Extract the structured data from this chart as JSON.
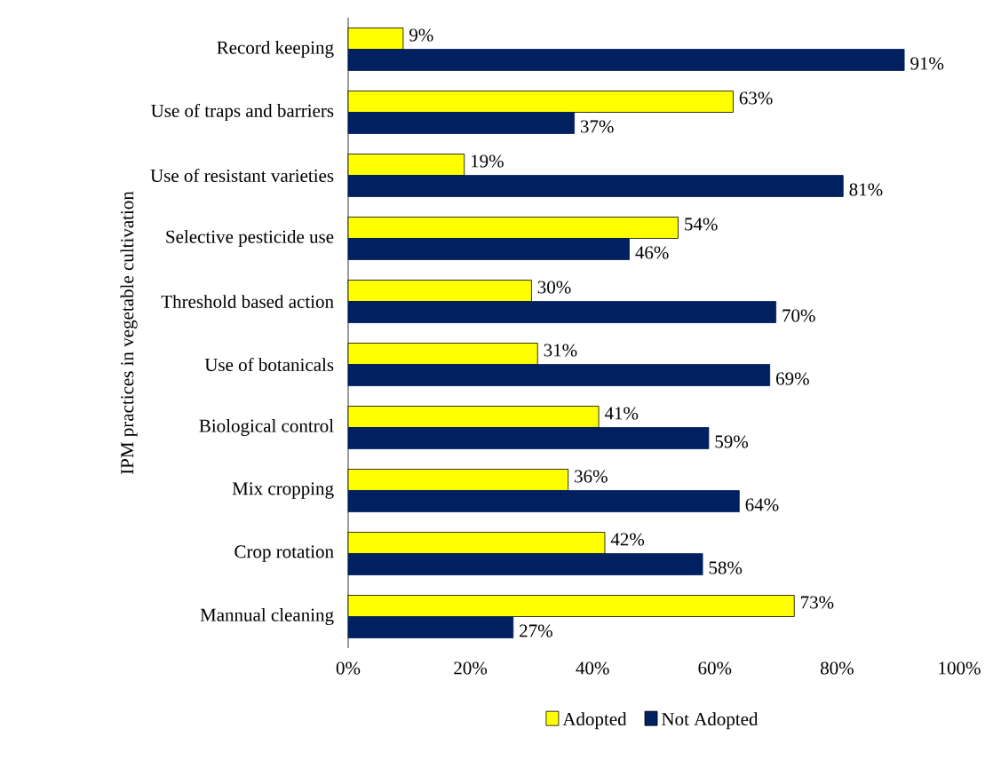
{
  "chart_data": {
    "type": "bar",
    "orientation": "horizontal",
    "ylabel": "IPM practices in vegetable cultivation",
    "categories": [
      "Record keeping",
      "Use of traps and barriers",
      "Use of resistant varieties",
      "Selective pesticide use",
      "Threshold based action",
      "Use of botanicals",
      "Biological control",
      "Mix cropping",
      "Crop rotation",
      "Mannual cleaning"
    ],
    "series": [
      {
        "name": "Adopted",
        "color": "#ffff00",
        "values": [
          9,
          63,
          19,
          54,
          30,
          31,
          41,
          36,
          42,
          73
        ],
        "value_labels": [
          "9%",
          "63%",
          "19%",
          "54%",
          "30%",
          "31%",
          "41%",
          "36%",
          "42%",
          "73%"
        ]
      },
      {
        "name": "Not Adopted",
        "color": "#002060",
        "values": [
          91,
          37,
          81,
          46,
          70,
          69,
          59,
          64,
          58,
          27
        ],
        "value_labels": [
          "91%",
          "37%",
          "81%",
          "46%",
          "70%",
          "69%",
          "59%",
          "64%",
          "58%",
          "27%"
        ]
      }
    ],
    "xlim": [
      0,
      100
    ],
    "xticks": [
      {
        "value": 0,
        "label": "0%"
      },
      {
        "value": 20,
        "label": "20%"
      },
      {
        "value": 40,
        "label": "40%"
      },
      {
        "value": 60,
        "label": "60%"
      },
      {
        "value": 80,
        "label": "80%"
      },
      {
        "value": 100,
        "label": "100%"
      }
    ],
    "grid": false,
    "legend": "bottom"
  }
}
